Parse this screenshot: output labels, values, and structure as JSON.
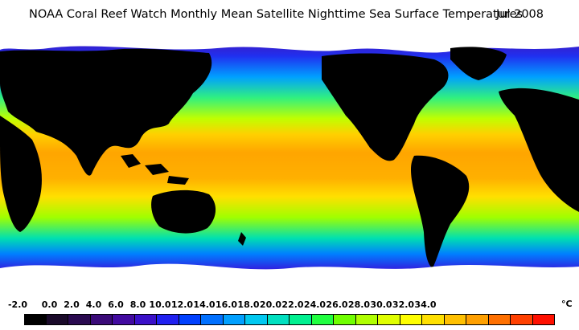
{
  "title": {
    "main": "NOAA Coral Reef Watch Monthly Mean Satellite Nighttime Sea Surface Temperatures",
    "date": "Jul 2008"
  },
  "legend": {
    "labels": [
      "-2.0",
      "0.0",
      "2.0",
      "4.0",
      "6.0",
      "8.0",
      "10.0",
      "12.0",
      "14.0",
      "16.0",
      "18.0",
      "20.0",
      "22.0",
      "24.0",
      "26.0",
      "28.0",
      "30.0",
      "32.0",
      "34.0"
    ],
    "unit": "°C",
    "colors": [
      "#000000",
      "#1a0a2a",
      "#2a0a50",
      "#3a0a78",
      "#420aa0",
      "#3a10c8",
      "#2020f0",
      "#0040ff",
      "#0070ff",
      "#00a0ff",
      "#00c8f0",
      "#00e0c0",
      "#00f090",
      "#20ff40",
      "#70ff00",
      "#b0ff00",
      "#e0ff00",
      "#ffff00",
      "#ffe000",
      "#ffc000",
      "#ffa000",
      "#ff7000",
      "#ff4000",
      "#ff1000"
    ]
  },
  "map_colors": {
    "land": "#000000",
    "ice": "#ffffff",
    "tropical": "#ffa500",
    "warm": "#ffe000",
    "mild": "#70ff20",
    "cool": "#00d0c0",
    "cold": "#0060ff",
    "polar": "#4010a0"
  }
}
